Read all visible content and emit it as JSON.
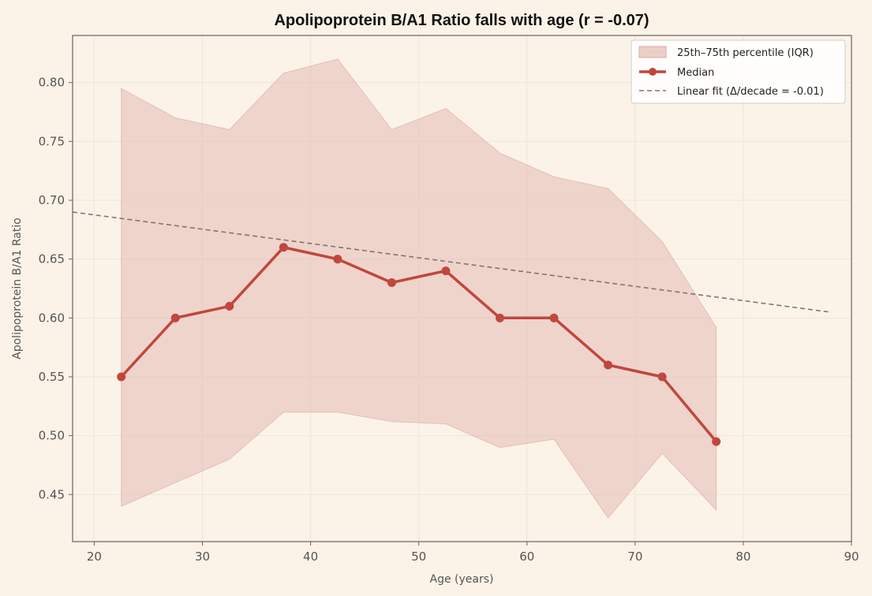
{
  "chart_data": {
    "type": "line",
    "title": "Apolipoprotein B/A1 Ratio falls with age (r = -0.07)",
    "xlabel": "Age (years)",
    "ylabel": "Apolipoprotein B/A1 Ratio",
    "xlim": [
      18,
      90
    ],
    "ylim": [
      0.41,
      0.84
    ],
    "xticks": [
      20,
      30,
      40,
      50,
      60,
      70,
      80,
      90
    ],
    "yticks": [
      0.45,
      0.5,
      0.55,
      0.6,
      0.65,
      0.7,
      0.75,
      0.8
    ],
    "grid": true,
    "legend_position": "top-right",
    "x": [
      22.5,
      27.5,
      32.5,
      37.5,
      42.5,
      47.5,
      52.5,
      57.5,
      62.5,
      67.5,
      72.5,
      77.5
    ],
    "series": [
      {
        "name": "Median",
        "values": [
          0.55,
          0.6,
          0.61,
          0.66,
          0.65,
          0.63,
          0.64,
          0.6,
          0.6,
          0.56,
          0.55,
          0.495
        ],
        "color": "#c0473d"
      }
    ],
    "band": {
      "name": "25th–75th percentile (IQR)",
      "lower": [
        0.44,
        0.46,
        0.48,
        0.52,
        0.52,
        0.512,
        0.51,
        0.49,
        0.497,
        0.43,
        0.485,
        0.437
      ],
      "upper": [
        0.795,
        0.77,
        0.76,
        0.808,
        0.82,
        0.76,
        0.778,
        0.74,
        0.72,
        0.71,
        0.665,
        0.592
      ],
      "color": "#e6bab4"
    },
    "fit": {
      "name": "Linear fit (Δ/decade = -0.01)",
      "x": [
        18,
        88
      ],
      "y": [
        0.69,
        0.605
      ],
      "color": "#807575"
    }
  }
}
